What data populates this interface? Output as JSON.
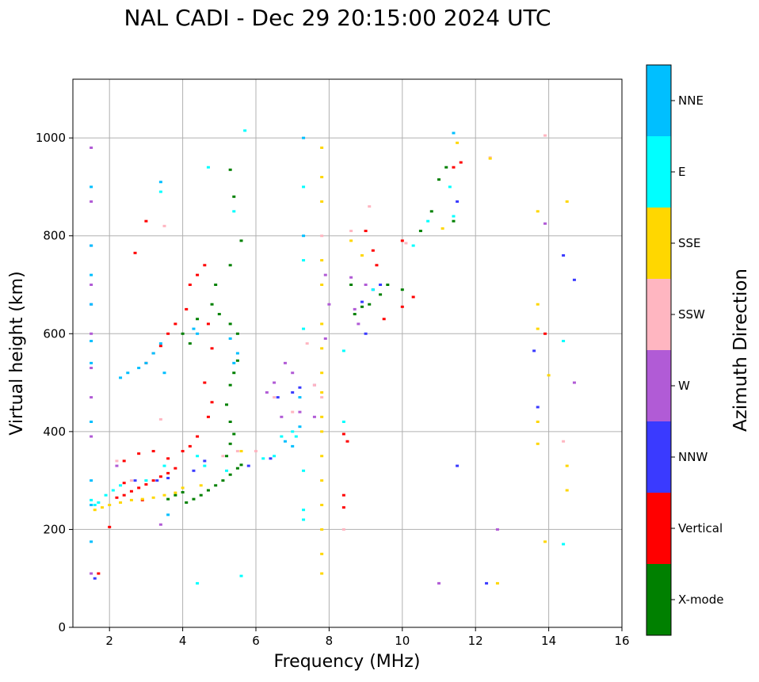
{
  "chart_data": {
    "type": "scatter",
    "title": "NAL CADI - Dec 29 20:15:00 2024 UTC",
    "xlabel": "Frequency (MHz)",
    "ylabel": "Virtual height (km)",
    "xlim": [
      1,
      16
    ],
    "ylim": [
      0,
      1120
    ],
    "xticks": [
      2,
      4,
      6,
      8,
      10,
      12,
      14,
      16
    ],
    "yticks": [
      0,
      200,
      400,
      600,
      800,
      1000
    ],
    "grid": true,
    "colorbar": {
      "label": "Azimuth Direction",
      "position": "right",
      "categories": [
        {
          "name": "X-mode",
          "color": "#008000"
        },
        {
          "name": "Vertical",
          "color": "#ff0000"
        },
        {
          "name": "NNW",
          "color": "#3a3aff"
        },
        {
          "name": "W",
          "color": "#b15bd6"
        },
        {
          "name": "SSW",
          "color": "#ffb6c1"
        },
        {
          "name": "SSE",
          "color": "#ffd700"
        },
        {
          "name": "E",
          "color": "#00ffff"
        },
        {
          "name": "NNE",
          "color": "#00bfff"
        }
      ]
    },
    "series": [
      {
        "name": "X-mode",
        "points": [
          [
            4.1,
            255
          ],
          [
            4.3,
            262
          ],
          [
            4.5,
            270
          ],
          [
            4.7,
            280
          ],
          [
            4.9,
            290
          ],
          [
            5.1,
            300
          ],
          [
            5.3,
            312
          ],
          [
            5.5,
            325
          ],
          [
            5.6,
            332
          ],
          [
            3.6,
            262
          ],
          [
            3.8,
            270
          ],
          [
            4.0,
            276
          ],
          [
            5.2,
            350
          ],
          [
            5.3,
            375
          ],
          [
            5.4,
            395
          ],
          [
            5.3,
            420
          ],
          [
            5.2,
            455
          ],
          [
            5.3,
            495
          ],
          [
            5.4,
            520
          ],
          [
            5.5,
            545
          ],
          [
            5.5,
            600
          ],
          [
            5.3,
            620
          ],
          [
            5.0,
            640
          ],
          [
            4.8,
            660
          ],
          [
            4.9,
            700
          ],
          [
            5.3,
            740
          ],
          [
            5.6,
            790
          ],
          [
            5.4,
            880
          ],
          [
            5.3,
            935
          ],
          [
            4.2,
            580
          ],
          [
            4.0,
            600
          ],
          [
            4.4,
            630
          ],
          [
            8.7,
            640
          ],
          [
            8.9,
            655
          ],
          [
            9.1,
            660
          ],
          [
            9.4,
            680
          ],
          [
            9.6,
            700
          ],
          [
            8.6,
            700
          ],
          [
            10.0,
            690
          ],
          [
            10.5,
            810
          ],
          [
            10.8,
            850
          ],
          [
            11.0,
            915
          ],
          [
            11.2,
            940
          ],
          [
            11.4,
            830
          ]
        ]
      },
      {
        "name": "Vertical",
        "points": [
          [
            1.7,
            110
          ],
          [
            2.0,
            205
          ],
          [
            2.2,
            265
          ],
          [
            2.4,
            270
          ],
          [
            2.6,
            278
          ],
          [
            2.8,
            285
          ],
          [
            3.0,
            292
          ],
          [
            3.2,
            300
          ],
          [
            3.4,
            308
          ],
          [
            3.6,
            315
          ],
          [
            3.8,
            325
          ],
          [
            2.4,
            340
          ],
          [
            2.8,
            355
          ],
          [
            3.2,
            360
          ],
          [
            3.6,
            345
          ],
          [
            4.0,
            360
          ],
          [
            4.2,
            370
          ],
          [
            4.4,
            390
          ],
          [
            3.0,
            540
          ],
          [
            3.2,
            560
          ],
          [
            3.4,
            575
          ],
          [
            3.6,
            600
          ],
          [
            3.8,
            620
          ],
          [
            4.1,
            650
          ],
          [
            4.2,
            700
          ],
          [
            4.4,
            720
          ],
          [
            4.6,
            740
          ],
          [
            4.7,
            620
          ],
          [
            4.8,
            570
          ],
          [
            4.6,
            500
          ],
          [
            4.8,
            460
          ],
          [
            4.7,
            430
          ],
          [
            3.0,
            830
          ],
          [
            2.7,
            765
          ],
          [
            8.4,
            270
          ],
          [
            8.4,
            245
          ],
          [
            8.5,
            380
          ],
          [
            8.4,
            395
          ],
          [
            9.0,
            810
          ],
          [
            9.2,
            770
          ],
          [
            9.3,
            740
          ],
          [
            9.5,
            630
          ],
          [
            10.0,
            655
          ],
          [
            10.0,
            790
          ],
          [
            10.3,
            675
          ],
          [
            11.4,
            940
          ],
          [
            11.6,
            950
          ],
          [
            13.9,
            600
          ],
          [
            2.4,
            295
          ],
          [
            2.9,
            260
          ]
        ]
      },
      {
        "name": "NNW",
        "points": [
          [
            1.6,
            100
          ],
          [
            2.7,
            300
          ],
          [
            3.3,
            300
          ],
          [
            3.6,
            305
          ],
          [
            4.3,
            320
          ],
          [
            4.6,
            340
          ],
          [
            5.8,
            330
          ],
          [
            6.4,
            345
          ],
          [
            6.6,
            470
          ],
          [
            7.0,
            480
          ],
          [
            7.2,
            490
          ],
          [
            8.9,
            665
          ],
          [
            9.2,
            690
          ],
          [
            9.4,
            700
          ],
          [
            9.0,
            600
          ],
          [
            11.5,
            330
          ],
          [
            11.5,
            870
          ],
          [
            12.3,
            90
          ],
          [
            13.6,
            565
          ],
          [
            13.7,
            450
          ],
          [
            14.4,
            760
          ],
          [
            14.7,
            710
          ]
        ]
      },
      {
        "name": "W",
        "points": [
          [
            1.5,
            110
          ],
          [
            1.5,
            390
          ],
          [
            1.5,
            470
          ],
          [
            1.5,
            530
          ],
          [
            1.5,
            600
          ],
          [
            1.5,
            660
          ],
          [
            1.5,
            700
          ],
          [
            1.5,
            780
          ],
          [
            1.5,
            870
          ],
          [
            1.5,
            980
          ],
          [
            6.3,
            480
          ],
          [
            6.5,
            500
          ],
          [
            6.8,
            540
          ],
          [
            7.0,
            520
          ],
          [
            6.7,
            430
          ],
          [
            7.2,
            440
          ],
          [
            7.6,
            430
          ],
          [
            7.6,
            495
          ],
          [
            7.9,
            590
          ],
          [
            8.0,
            660
          ],
          [
            7.9,
            720
          ],
          [
            8.6,
            715
          ],
          [
            8.7,
            650
          ],
          [
            8.8,
            620
          ],
          [
            9.0,
            700
          ],
          [
            12.6,
            200
          ],
          [
            13.9,
            825
          ],
          [
            14.7,
            500
          ],
          [
            11.0,
            90
          ],
          [
            2.2,
            330
          ],
          [
            3.4,
            210
          ]
        ]
      },
      {
        "name": "SSW",
        "points": [
          [
            2.2,
            340
          ],
          [
            2.6,
            300
          ],
          [
            3.0,
            300
          ],
          [
            3.4,
            425
          ],
          [
            3.5,
            820
          ],
          [
            5.1,
            350
          ],
          [
            5.5,
            360
          ],
          [
            6.0,
            360
          ],
          [
            6.5,
            470
          ],
          [
            7.0,
            440
          ],
          [
            7.6,
            495
          ],
          [
            7.8,
            470
          ],
          [
            7.8,
            800
          ],
          [
            8.4,
            200
          ],
          [
            8.6,
            810
          ],
          [
            9.1,
            860
          ],
          [
            10.1,
            785
          ],
          [
            12.4,
            960
          ],
          [
            13.9,
            1005
          ],
          [
            14.4,
            380
          ],
          [
            7.4,
            580
          ]
        ]
      },
      {
        "name": "SSE",
        "points": [
          [
            1.6,
            240
          ],
          [
            1.8,
            245
          ],
          [
            2.0,
            250
          ],
          [
            2.3,
            255
          ],
          [
            2.6,
            260
          ],
          [
            2.9,
            262
          ],
          [
            3.2,
            265
          ],
          [
            3.5,
            270
          ],
          [
            3.8,
            275
          ],
          [
            4.0,
            285
          ],
          [
            4.5,
            290
          ],
          [
            5.6,
            360
          ],
          [
            7.8,
            110
          ],
          [
            7.8,
            150
          ],
          [
            7.8,
            200
          ],
          [
            7.8,
            250
          ],
          [
            7.8,
            300
          ],
          [
            7.8,
            350
          ],
          [
            7.8,
            400
          ],
          [
            7.8,
            430
          ],
          [
            7.8,
            480
          ],
          [
            7.8,
            520
          ],
          [
            7.8,
            570
          ],
          [
            7.8,
            620
          ],
          [
            7.8,
            700
          ],
          [
            7.8,
            750
          ],
          [
            7.8,
            870
          ],
          [
            7.8,
            920
          ],
          [
            7.8,
            980
          ],
          [
            8.6,
            790
          ],
          [
            8.9,
            760
          ],
          [
            11.1,
            815
          ],
          [
            11.5,
            990
          ],
          [
            12.4,
            958
          ],
          [
            12.6,
            90
          ],
          [
            13.7,
            375
          ],
          [
            13.7,
            420
          ],
          [
            13.7,
            610
          ],
          [
            13.7,
            660
          ],
          [
            13.7,
            850
          ],
          [
            13.9,
            175
          ],
          [
            14.0,
            515
          ],
          [
            14.5,
            280
          ],
          [
            14.5,
            330
          ],
          [
            14.5,
            870
          ]
        ]
      },
      {
        "name": "E",
        "points": [
          [
            1.5,
            260
          ],
          [
            1.6,
            250
          ],
          [
            1.7,
            255
          ],
          [
            1.9,
            270
          ],
          [
            2.1,
            280
          ],
          [
            2.3,
            290
          ],
          [
            3.0,
            300
          ],
          [
            3.5,
            330
          ],
          [
            4.4,
            350
          ],
          [
            4.6,
            330
          ],
          [
            5.2,
            320
          ],
          [
            6.2,
            345
          ],
          [
            6.5,
            350
          ],
          [
            6.7,
            390
          ],
          [
            7.0,
            400
          ],
          [
            7.1,
            390
          ],
          [
            7.3,
            220
          ],
          [
            7.3,
            240
          ],
          [
            7.3,
            320
          ],
          [
            7.3,
            610
          ],
          [
            7.3,
            750
          ],
          [
            7.3,
            900
          ],
          [
            8.4,
            565
          ],
          [
            8.4,
            420
          ],
          [
            9.2,
            690
          ],
          [
            10.3,
            780
          ],
          [
            10.7,
            830
          ],
          [
            11.3,
            900
          ],
          [
            11.4,
            840
          ],
          [
            14.4,
            170
          ],
          [
            14.4,
            585
          ],
          [
            5.7,
            1015
          ],
          [
            4.4,
            90
          ],
          [
            5.6,
            105
          ],
          [
            4.7,
            940
          ],
          [
            5.4,
            850
          ],
          [
            3.4,
            890
          ]
        ]
      },
      {
        "name": "NNE",
        "points": [
          [
            1.5,
            175
          ],
          [
            1.5,
            250
          ],
          [
            1.5,
            300
          ],
          [
            1.5,
            420
          ],
          [
            1.5,
            540
          ],
          [
            1.5,
            585
          ],
          [
            1.5,
            660
          ],
          [
            1.5,
            720
          ],
          [
            1.5,
            780
          ],
          [
            1.5,
            900
          ],
          [
            2.3,
            510
          ],
          [
            2.5,
            520
          ],
          [
            2.8,
            530
          ],
          [
            3.0,
            540
          ],
          [
            3.2,
            560
          ],
          [
            3.4,
            580
          ],
          [
            3.5,
            520
          ],
          [
            3.4,
            910
          ],
          [
            3.6,
            230
          ],
          [
            4.3,
            610
          ],
          [
            4.4,
            600
          ],
          [
            5.3,
            590
          ],
          [
            5.4,
            540
          ],
          [
            5.5,
            560
          ],
          [
            6.8,
            380
          ],
          [
            7.0,
            370
          ],
          [
            7.2,
            410
          ],
          [
            7.2,
            470
          ],
          [
            7.3,
            1000
          ],
          [
            7.3,
            800
          ],
          [
            11.4,
            1010
          ]
        ]
      }
    ]
  }
}
